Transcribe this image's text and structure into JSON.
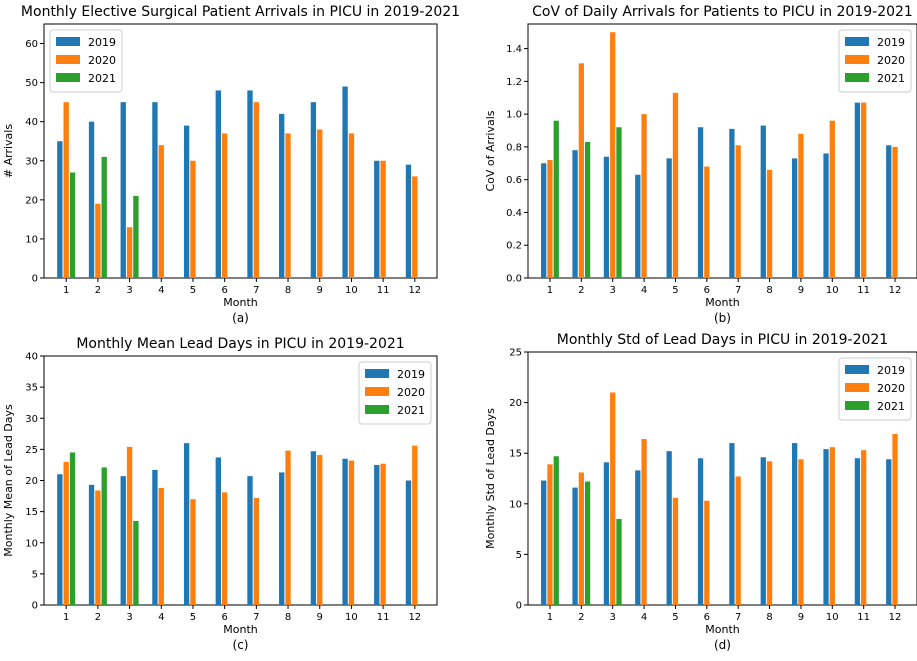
{
  "colors": {
    "2019": "#1f77b4",
    "2020": "#ff7f0e",
    "2021": "#2ca02c"
  },
  "chart_data": [
    {
      "type": "bar",
      "title": "Monthly Elective Surgical Patient Arrivals in PICU in 2019-2021",
      "xlabel": "Month",
      "ylabel": "# Arrivals",
      "caption": "(a)",
      "categories": [
        "1",
        "2",
        "3",
        "4",
        "5",
        "6",
        "7",
        "8",
        "9",
        "10",
        "11",
        "12"
      ],
      "ylim": [
        0,
        65
      ],
      "yticks": [
        0,
        10,
        20,
        30,
        40,
        50,
        60
      ],
      "legend": "top-left",
      "series": [
        {
          "name": "2019",
          "values": [
            35,
            40,
            45,
            45,
            39,
            48,
            48,
            42,
            45,
            49,
            30,
            29
          ]
        },
        {
          "name": "2020",
          "values": [
            45,
            19,
            13,
            34,
            30,
            37,
            45,
            37,
            38,
            37,
            30,
            26
          ]
        },
        {
          "name": "2021",
          "values": [
            27,
            31,
            21,
            null,
            null,
            null,
            null,
            null,
            null,
            null,
            null,
            null
          ]
        }
      ]
    },
    {
      "type": "bar",
      "title": "CoV of Daily Arrivals for Patients to PICU in 2019-2021",
      "xlabel": "Month",
      "ylabel": "CoV of Arrivals",
      "caption": "(b)",
      "categories": [
        "1",
        "2",
        "3",
        "4",
        "5",
        "6",
        "7",
        "8",
        "9",
        "10",
        "11",
        "12"
      ],
      "ylim": [
        0,
        1.55
      ],
      "yticks": [
        "0.0",
        "0.2",
        "0.4",
        "0.6",
        "0.8",
        "1.0",
        "1.2",
        "1.4"
      ],
      "legend": "top-right",
      "series": [
        {
          "name": "2019",
          "values": [
            0.7,
            0.78,
            0.74,
            0.63,
            0.73,
            0.92,
            0.91,
            0.93,
            0.73,
            0.76,
            1.07,
            0.81
          ]
        },
        {
          "name": "2020",
          "values": [
            0.72,
            1.31,
            1.5,
            1.0,
            1.13,
            0.68,
            0.81,
            0.66,
            0.88,
            0.96,
            1.07,
            0.8
          ]
        },
        {
          "name": "2021",
          "values": [
            0.96,
            0.83,
            0.92,
            null,
            null,
            null,
            null,
            null,
            null,
            null,
            null,
            null
          ]
        }
      ]
    },
    {
      "type": "bar",
      "title": "Monthly Mean Lead Days in PICU in 2019-2021",
      "xlabel": "Month",
      "ylabel": "Monthly Mean of Lead Days",
      "caption": "(c)",
      "categories": [
        "1",
        "2",
        "3",
        "4",
        "5",
        "6",
        "7",
        "8",
        "9",
        "10",
        "11",
        "12"
      ],
      "ylim": [
        0,
        40
      ],
      "yticks": [
        0,
        5,
        10,
        15,
        20,
        25,
        30,
        35,
        40
      ],
      "legend": "top-right",
      "series": [
        {
          "name": "2019",
          "values": [
            21.0,
            19.3,
            20.7,
            21.7,
            26.0,
            23.7,
            20.7,
            21.3,
            24.7,
            23.5,
            22.5,
            20.0
          ]
        },
        {
          "name": "2020",
          "values": [
            23.0,
            18.4,
            25.4,
            18.8,
            17.0,
            18.1,
            17.2,
            24.8,
            24.1,
            23.2,
            22.7,
            25.6
          ]
        },
        {
          "name": "2021",
          "values": [
            24.5,
            22.1,
            13.5,
            null,
            null,
            null,
            null,
            null,
            null,
            null,
            null,
            null
          ]
        }
      ]
    },
    {
      "type": "bar",
      "title": "Monthly Std of Lead Days in PICU in 2019-2021",
      "xlabel": "Month",
      "ylabel": "Monthly Std of Lead Days",
      "caption": "(d)",
      "categories": [
        "1",
        "2",
        "3",
        "4",
        "5",
        "6",
        "7",
        "8",
        "9",
        "10",
        "11",
        "12"
      ],
      "ylim": [
        0,
        25
      ],
      "yticks": [
        0,
        5,
        10,
        15,
        20,
        25
      ],
      "legend": "top-right",
      "series": [
        {
          "name": "2019",
          "values": [
            12.3,
            11.6,
            14.1,
            13.3,
            15.2,
            14.5,
            16.0,
            14.6,
            16.0,
            15.4,
            14.5,
            14.4
          ]
        },
        {
          "name": "2020",
          "values": [
            13.9,
            13.1,
            21.0,
            16.4,
            10.6,
            10.3,
            12.7,
            14.2,
            14.4,
            15.6,
            15.3,
            16.9
          ]
        },
        {
          "name": "2021",
          "values": [
            14.7,
            12.2,
            8.5,
            null,
            null,
            null,
            null,
            null,
            null,
            null,
            null,
            null
          ]
        }
      ]
    }
  ]
}
